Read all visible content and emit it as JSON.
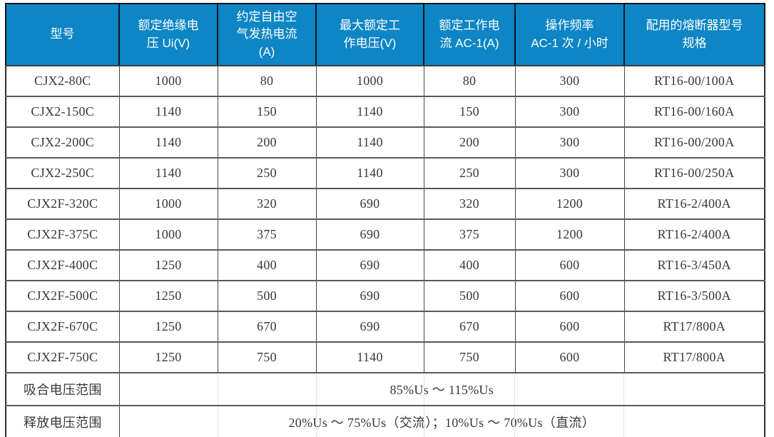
{
  "colors": {
    "header_bg": "#0e85c4",
    "header_text": "#ffffff",
    "body_text": "#383838",
    "grid_line": "#595959"
  },
  "table": {
    "columns": [
      "型号",
      "额定绝缘电\n压 Ui(V)",
      "约定自由空\n气发热电流\n(A)",
      "最大额定工\n作电压(V)",
      "额定工作电\n流 AC-1(A)",
      "操作频率\nAC-1 次 / 小时",
      "配用的熔断器型号\n规格"
    ],
    "rows": [
      [
        "CJX2-80C",
        "1000",
        "80",
        "1000",
        "80",
        "300",
        "RT16-00/100A"
      ],
      [
        "CJX2-150C",
        "1140",
        "150",
        "1140",
        "150",
        "300",
        "RT16-00/160A"
      ],
      [
        "CJX2-200C",
        "1140",
        "200",
        "1140",
        "200",
        "300",
        "RT16-00/200A"
      ],
      [
        "CJX2-250C",
        "1140",
        "250",
        "1140",
        "250",
        "300",
        "RT16-00/250A"
      ],
      [
        "CJX2F-320C",
        "1000",
        "320",
        "690",
        "320",
        "1200",
        "RT16-2/400A"
      ],
      [
        "CJX2F-375C",
        "1000",
        "375",
        "690",
        "375",
        "1200",
        "RT16-2/400A"
      ],
      [
        "CJX2F-400C",
        "1250",
        "400",
        "690",
        "400",
        "600",
        "RT16-3/450A"
      ],
      [
        "CJX2F-500C",
        "1250",
        "500",
        "690",
        "500",
        "600",
        "RT16-3/500A"
      ],
      [
        "CJX2F-670C",
        "1250",
        "670",
        "690",
        "670",
        "600",
        "RT17/800A"
      ],
      [
        "CJX2F-750C",
        "1250",
        "750",
        "1140",
        "750",
        "600",
        "RT17/800A"
      ]
    ],
    "footer": [
      {
        "label": "吸合电压范围",
        "value": "85%Us ～ 115%Us"
      },
      {
        "label": "释放电压范围",
        "value": "20%Us ～ 75%Us（交流）；10%Us ～ 70%Us（直流）"
      }
    ]
  }
}
